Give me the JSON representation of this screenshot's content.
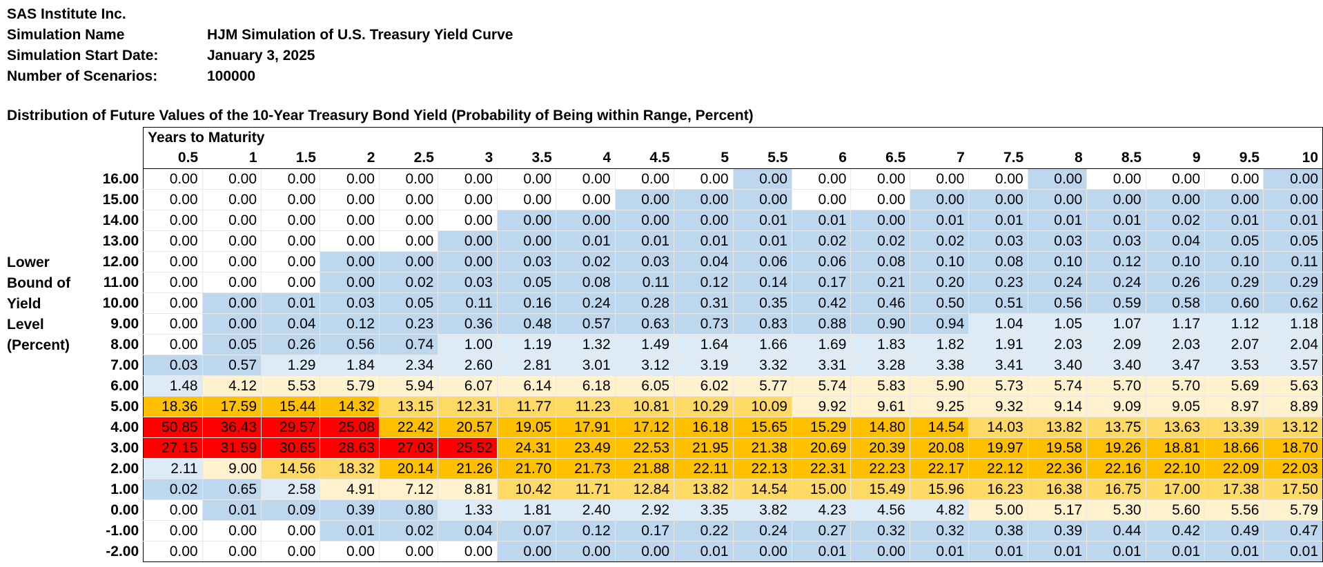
{
  "header": {
    "company": "SAS Institute Inc.",
    "rows": [
      {
        "label": "Simulation Name",
        "value": "HJM Simulation of U.S. Treasury Yield Curve"
      },
      {
        "label": "Simulation Start Date:",
        "value": "January 3, 2025"
      },
      {
        "label": "Number of Scenarios:",
        "value": "100000"
      }
    ]
  },
  "distribution_title": "Distribution of Future Values of the 10-Year Treasury Bond Yield (Probability of Being within Range, Percent)",
  "side_label": [
    "Lower",
    "Bound of",
    "Yield",
    "Level",
    "(Percent)"
  ],
  "column_band_title": "Years to Maturity",
  "colors": {
    "white": "#ffffff",
    "blue": "#bdd7ee",
    "light_blue": "#ddebf7",
    "light_yellow": "#fff2cc",
    "light_orange": "#ffe699",
    "yellow": "#ffd966",
    "orange": "#ffc000",
    "red": "#ff0000"
  },
  "table": {
    "columns": [
      "0.5",
      "1",
      "1.5",
      "2",
      "2.5",
      "3",
      "3.5",
      "4",
      "4.5",
      "5",
      "5.5",
      "6",
      "6.5",
      "7",
      "7.5",
      "8",
      "8.5",
      "9",
      "9.5",
      "10"
    ],
    "rows": [
      {
        "label": "16.00",
        "values": [
          "0.00",
          "0.00",
          "0.00",
          "0.00",
          "0.00",
          "0.00",
          "0.00",
          "0.00",
          "0.00",
          "0.00",
          "0.00",
          "0.00",
          "0.00",
          "0.00",
          "0.00",
          "0.00",
          "0.00",
          "0.00",
          "0.00",
          "0.00"
        ],
        "fills": "WWWWWWWWWWBWWWWBWWWB"
      },
      {
        "label": "15.00",
        "values": [
          "0.00",
          "0.00",
          "0.00",
          "0.00",
          "0.00",
          "0.00",
          "0.00",
          "0.00",
          "0.00",
          "0.00",
          "0.00",
          "0.00",
          "0.00",
          "0.00",
          "0.00",
          "0.00",
          "0.00",
          "0.00",
          "0.00",
          "0.00"
        ],
        "fills": "WWWWWWWWBBBWWBBBBBBB"
      },
      {
        "label": "14.00",
        "values": [
          "0.00",
          "0.00",
          "0.00",
          "0.00",
          "0.00",
          "0.00",
          "0.00",
          "0.00",
          "0.00",
          "0.00",
          "0.01",
          "0.01",
          "0.00",
          "0.01",
          "0.01",
          "0.01",
          "0.01",
          "0.02",
          "0.01",
          "0.01"
        ],
        "fills": "WWWWWWBBBBBBBBBBBBBB"
      },
      {
        "label": "13.00",
        "values": [
          "0.00",
          "0.00",
          "0.00",
          "0.00",
          "0.00",
          "0.00",
          "0.00",
          "0.01",
          "0.01",
          "0.01",
          "0.01",
          "0.02",
          "0.02",
          "0.02",
          "0.03",
          "0.03",
          "0.03",
          "0.04",
          "0.05",
          "0.05"
        ],
        "fills": "WWWWWBBBBBBBBBBBBBBB"
      },
      {
        "label": "12.00",
        "values": [
          "0.00",
          "0.00",
          "0.00",
          "0.00",
          "0.00",
          "0.00",
          "0.03",
          "0.02",
          "0.03",
          "0.04",
          "0.06",
          "0.06",
          "0.08",
          "0.10",
          "0.08",
          "0.10",
          "0.12",
          "0.10",
          "0.10",
          "0.11"
        ],
        "fills": "WWWBBBBBBBBBBBBBBBBB"
      },
      {
        "label": "11.00",
        "values": [
          "0.00",
          "0.00",
          "0.00",
          "0.00",
          "0.02",
          "0.03",
          "0.05",
          "0.08",
          "0.11",
          "0.12",
          "0.14",
          "0.17",
          "0.21",
          "0.20",
          "0.23",
          "0.24",
          "0.24",
          "0.26",
          "0.29",
          "0.29"
        ],
        "fills": "WWWBBBBBBBBBBBBBBBBB"
      },
      {
        "label": "10.00",
        "values": [
          "0.00",
          "0.00",
          "0.01",
          "0.03",
          "0.05",
          "0.11",
          "0.16",
          "0.24",
          "0.28",
          "0.31",
          "0.35",
          "0.42",
          "0.46",
          "0.50",
          "0.51",
          "0.56",
          "0.59",
          "0.58",
          "0.60",
          "0.62"
        ],
        "fills": "WBBBBBBBBBBBBBBBBBBB"
      },
      {
        "label": "9.00",
        "values": [
          "0.00",
          "0.00",
          "0.04",
          "0.12",
          "0.23",
          "0.36",
          "0.48",
          "0.57",
          "0.63",
          "0.73",
          "0.83",
          "0.88",
          "0.90",
          "0.94",
          "1.04",
          "1.05",
          "1.07",
          "1.17",
          "1.12",
          "1.18"
        ],
        "fills": "WBBBBBBBBBBBBBLLLLLL"
      },
      {
        "label": "8.00",
        "values": [
          "0.00",
          "0.05",
          "0.26",
          "0.56",
          "0.74",
          "1.00",
          "1.19",
          "1.32",
          "1.49",
          "1.64",
          "1.66",
          "1.69",
          "1.83",
          "1.82",
          "1.91",
          "2.03",
          "2.09",
          "2.03",
          "2.07",
          "2.04"
        ],
        "fills": "WBBBBLLLLLLLLLLLLLLL"
      },
      {
        "label": "7.00",
        "values": [
          "0.03",
          "0.57",
          "1.29",
          "1.84",
          "2.34",
          "2.60",
          "2.81",
          "3.01",
          "3.12",
          "3.19",
          "3.32",
          "3.31",
          "3.28",
          "3.38",
          "3.41",
          "3.40",
          "3.40",
          "3.47",
          "3.53",
          "3.57"
        ],
        "fills": "BBLLLLLLLLLLLLLLLLLL"
      },
      {
        "label": "6.00",
        "values": [
          "1.48",
          "4.12",
          "5.53",
          "5.79",
          "5.94",
          "6.07",
          "6.14",
          "6.18",
          "6.05",
          "6.02",
          "5.77",
          "5.74",
          "5.83",
          "5.90",
          "5.73",
          "5.74",
          "5.70",
          "5.70",
          "5.69",
          "5.63"
        ],
        "fills": "LYYYYYYYYYYYYYYYYYYY"
      },
      {
        "label": "5.00",
        "values": [
          "18.36",
          "17.59",
          "15.44",
          "14.32",
          "13.15",
          "12.31",
          "11.77",
          "11.23",
          "10.81",
          "10.29",
          "10.09",
          "9.92",
          "9.61",
          "9.25",
          "9.32",
          "9.14",
          "9.09",
          "9.05",
          "8.97",
          "8.89"
        ],
        "fills": "GGGGOOOOOOOYYYYYYYYY"
      },
      {
        "label": "4.00",
        "values": [
          "50.85",
          "36.43",
          "29.57",
          "25.08",
          "22.42",
          "20.57",
          "19.05",
          "17.91",
          "17.12",
          "16.18",
          "15.65",
          "15.29",
          "14.80",
          "14.54",
          "14.03",
          "13.82",
          "13.75",
          "13.63",
          "13.39",
          "13.12"
        ],
        "fills": "RRRRGGGGGGGGGGOOOOOO"
      },
      {
        "label": "3.00",
        "values": [
          "27.15",
          "31.59",
          "30.65",
          "28.63",
          "27.03",
          "25.52",
          "24.31",
          "23.49",
          "22.53",
          "21.95",
          "21.38",
          "20.69",
          "20.39",
          "20.08",
          "19.97",
          "19.58",
          "19.26",
          "18.81",
          "18.66",
          "18.70"
        ],
        "fills": "RRRRRRGGGGGGGGGGGGGG"
      },
      {
        "label": "2.00",
        "values": [
          "2.11",
          "9.00",
          "14.56",
          "18.32",
          "20.14",
          "21.26",
          "21.70",
          "21.73",
          "21.88",
          "22.11",
          "22.13",
          "22.31",
          "22.23",
          "22.17",
          "22.12",
          "22.36",
          "22.16",
          "22.10",
          "22.09",
          "22.03"
        ],
        "fills": "LYOOGGGGGGGGGGGGGGGG"
      },
      {
        "label": "1.00",
        "values": [
          "0.02",
          "0.65",
          "2.58",
          "4.91",
          "7.12",
          "8.81",
          "10.42",
          "11.71",
          "12.84",
          "13.82",
          "14.54",
          "15.00",
          "15.49",
          "15.96",
          "16.23",
          "16.38",
          "16.75",
          "17.00",
          "17.38",
          "17.50"
        ],
        "fills": "BBLYYYOOOOOOOOOOOOOO"
      },
      {
        "label": "0.00",
        "values": [
          "0.00",
          "0.01",
          "0.09",
          "0.39",
          "0.80",
          "1.33",
          "1.81",
          "2.40",
          "2.92",
          "3.35",
          "3.82",
          "4.23",
          "4.56",
          "4.82",
          "5.00",
          "5.17",
          "5.30",
          "5.60",
          "5.56",
          "5.79"
        ],
        "fills": "WBBBBLLLLLLLLLYYYYYY"
      },
      {
        "label": "-1.00",
        "values": [
          "0.00",
          "0.00",
          "0.00",
          "0.01",
          "0.02",
          "0.04",
          "0.07",
          "0.12",
          "0.17",
          "0.22",
          "0.24",
          "0.27",
          "0.32",
          "0.32",
          "0.38",
          "0.39",
          "0.44",
          "0.42",
          "0.49",
          "0.47"
        ],
        "fills": "WWWBBBBBBBBBBBBBBBBB"
      },
      {
        "label": "-2.00",
        "values": [
          "0.00",
          "0.00",
          "0.00",
          "0.00",
          "0.00",
          "0.00",
          "0.00",
          "0.00",
          "0.00",
          "0.01",
          "0.00",
          "0.01",
          "0.00",
          "0.01",
          "0.01",
          "0.01",
          "0.01",
          "0.01",
          "0.01",
          "0.01"
        ],
        "fills": "WWWWWWBBBBBBBBBBBBBB"
      }
    ]
  }
}
